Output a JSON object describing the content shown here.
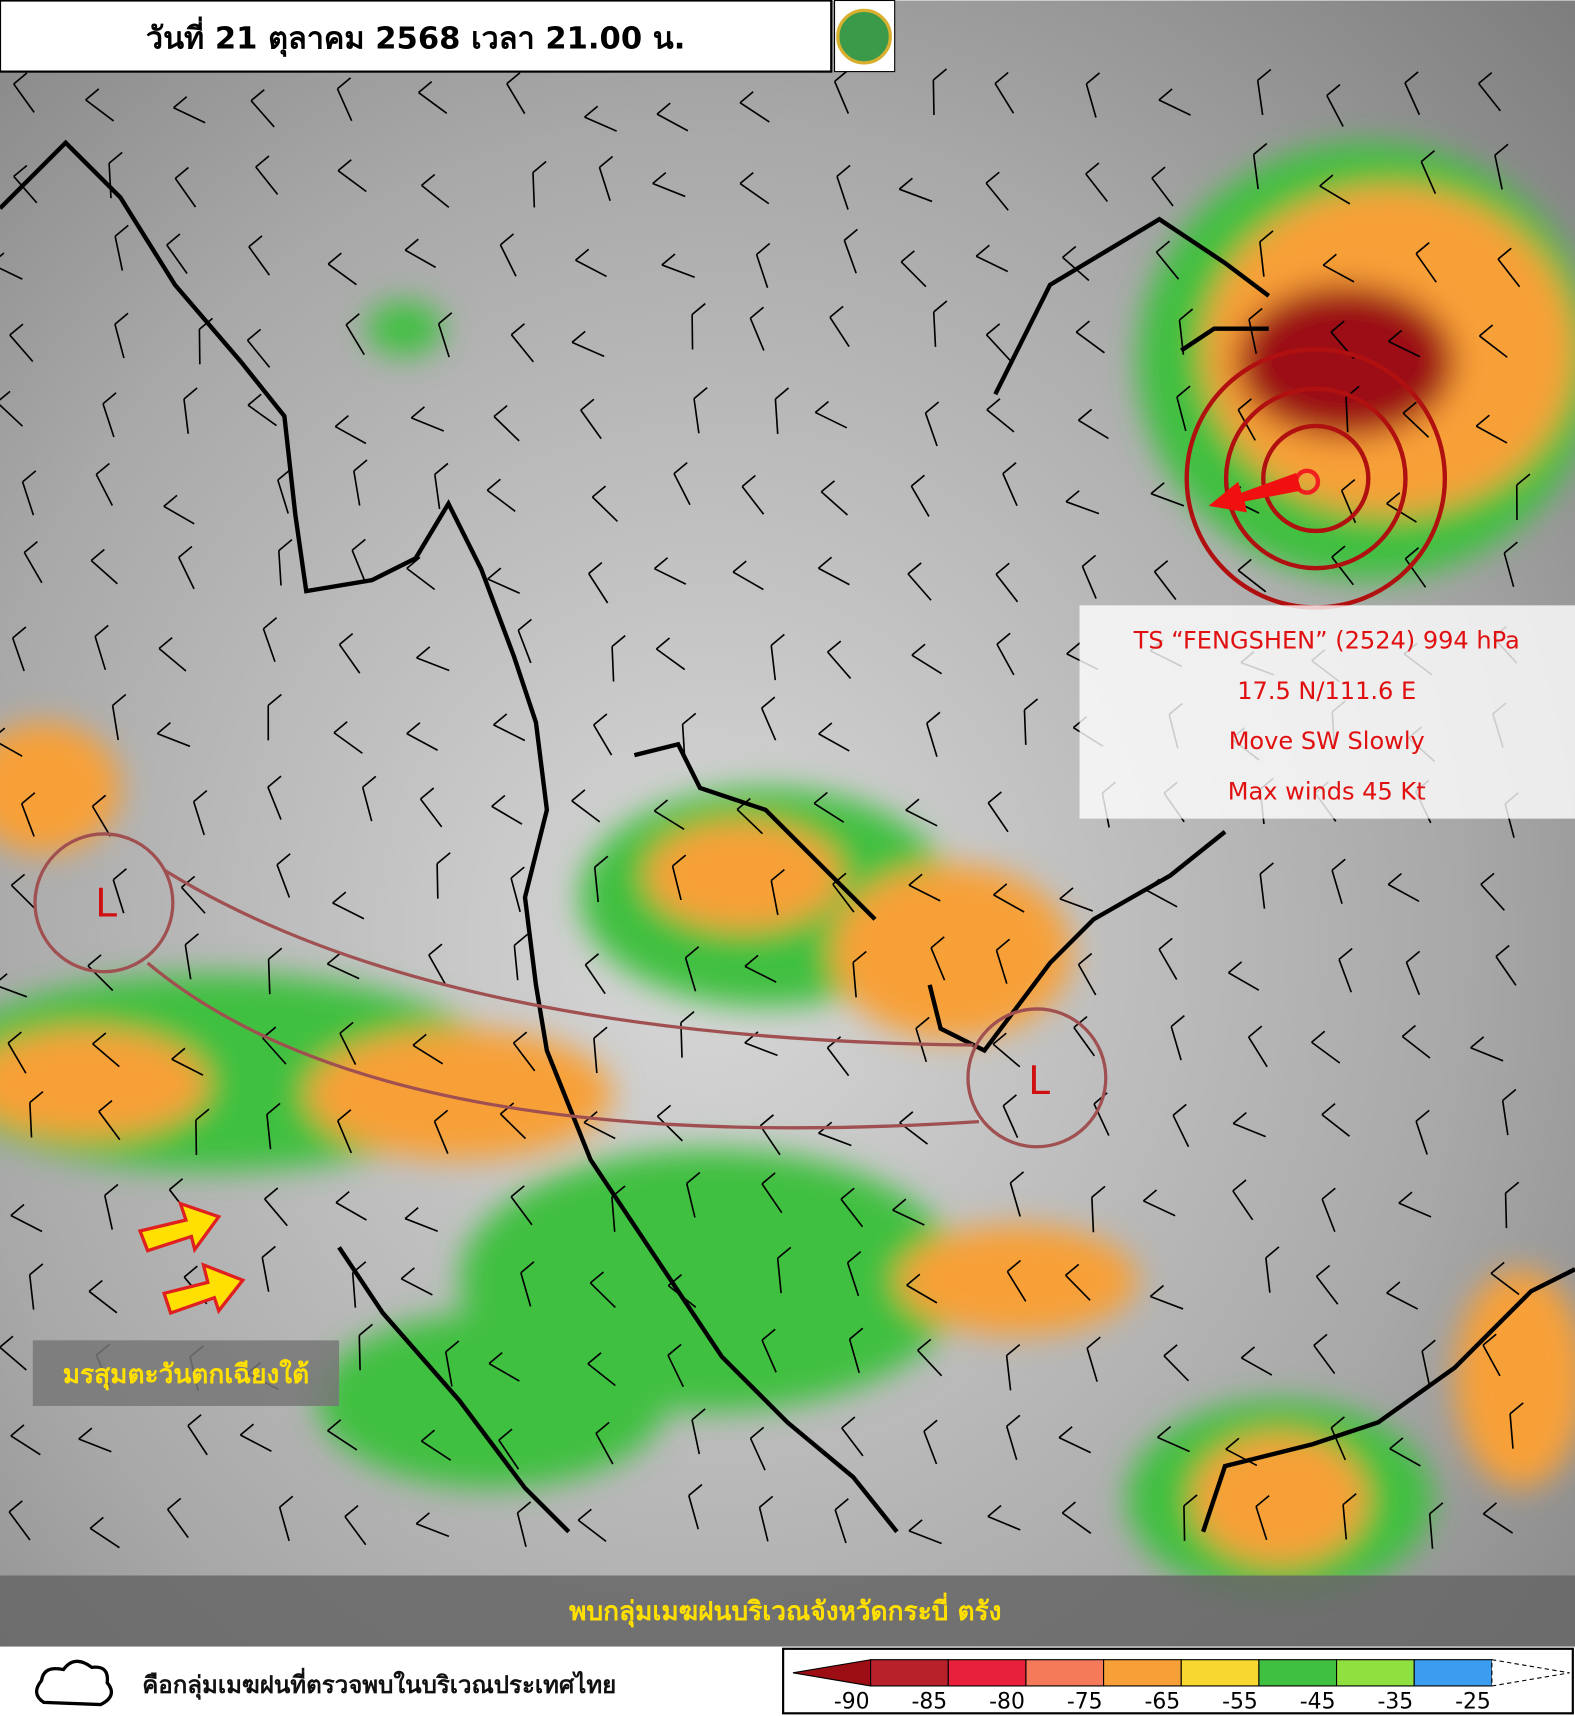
{
  "header": {
    "title": "วันที่ 21 ตุลาคม 2568 เวลา 21.00 น."
  },
  "storm": {
    "lines": [
      "TS “FENGSHEN” (2524) 994 hPa",
      "17.5 N/111.6 E",
      "Move SW Slowly",
      "Max winds 45 Kt"
    ]
  },
  "lows": [
    "L",
    "L"
  ],
  "monsoon_label": "มรสุมตะวันตกเฉียงใต้",
  "caption": "พบกลุ่มเมฆฝนบริเวณจังหวัดกระบี่ ตรัง",
  "legend": {
    "cloud_text": "คือกลุ่มเมฆฝนที่ตรวจพบในบริเวณประเทศไทย",
    "ticks": [
      -90,
      -85,
      -80,
      -75,
      -65,
      -55,
      -45,
      -35,
      -25
    ],
    "colors": [
      "#9c0e14",
      "#b8202a",
      "#e8203c",
      "#f47a5a",
      "#f8a038",
      "#f8d830",
      "#40c040",
      "#90e040",
      "#3c9cf0",
      "#ffffff"
    ]
  }
}
